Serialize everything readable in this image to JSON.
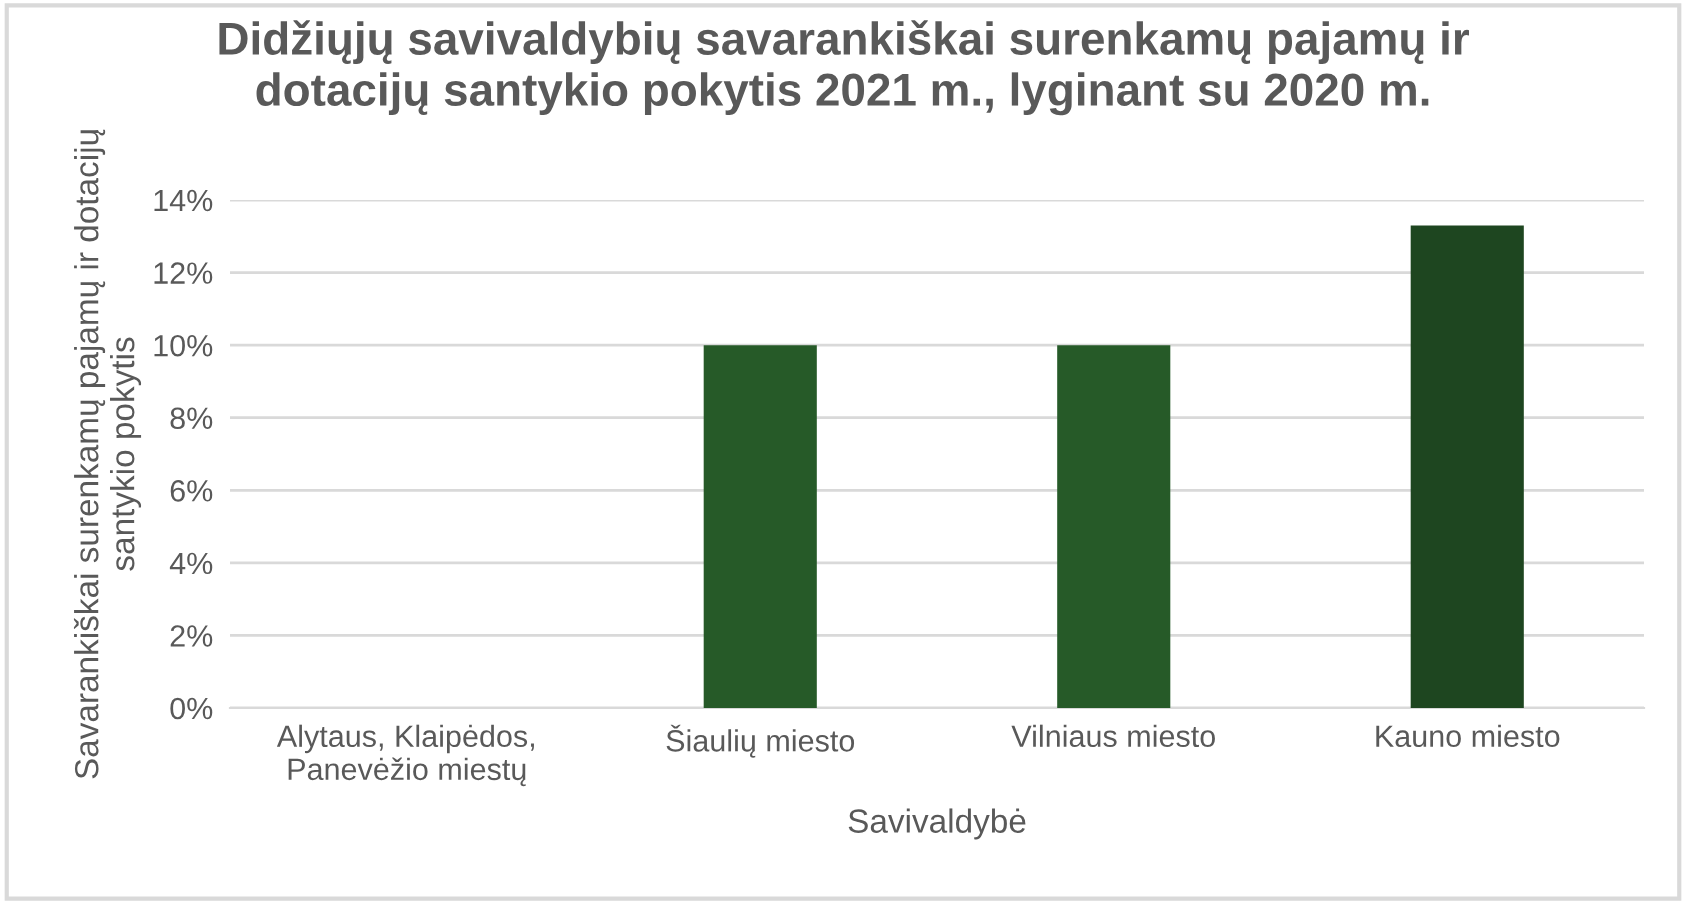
{
  "chart_data": {
    "type": "bar",
    "title": "Didžiųjų savivaldybių savarankiškai surenkamų pajamų ir\ndotacijų santykio pokytis 2021 m., lyginant su 2020 m.",
    "xlabel": "Savivaldybė",
    "ylabel": "Savarankiškai surenkamų pajamų ir dotacijų\nsantykio pokytis",
    "categories": [
      "Alytaus, Klaipėdos,\nPanevėžio miestų",
      "Šiaulių miesto",
      "Vilniaus miesto",
      "Kauno miesto"
    ],
    "values": [
      0,
      10,
      10,
      13.3
    ],
    "colors": [
      "#265a28",
      "#265a28",
      "#265a28",
      "#1e4620"
    ],
    "ylim": [
      0,
      14
    ],
    "yticks": [
      {
        "value": 0,
        "label": "0%"
      },
      {
        "value": 2,
        "label": "2%"
      },
      {
        "value": 4,
        "label": "4%"
      },
      {
        "value": 6,
        "label": "6%"
      },
      {
        "value": 8,
        "label": "8%"
      },
      {
        "value": 10,
        "label": "10%"
      },
      {
        "value": 12,
        "label": "12%"
      },
      {
        "value": 14,
        "label": "14%"
      }
    ],
    "grid": "y",
    "legend": false
  }
}
